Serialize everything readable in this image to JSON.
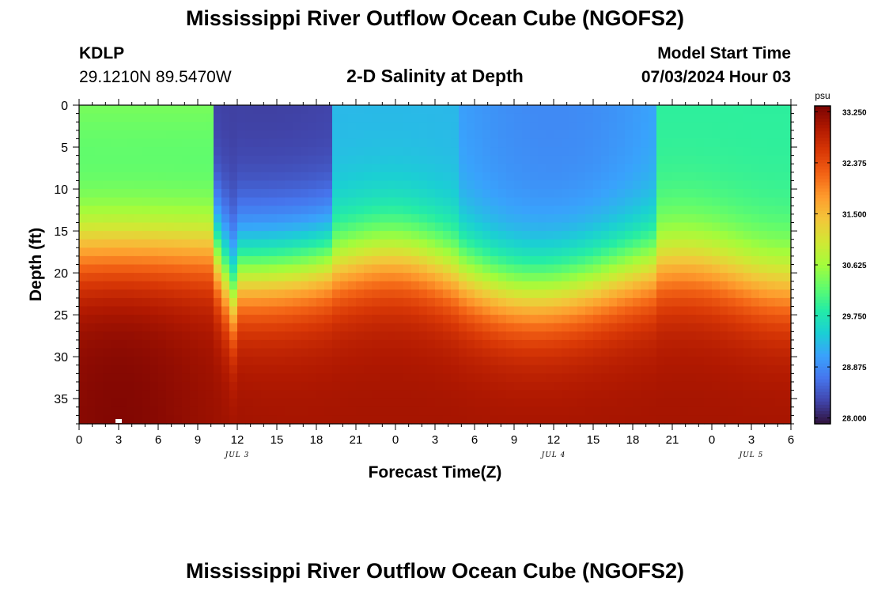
{
  "header": {
    "title": "Mississippi River Outflow Ocean Cube (NGOFS2)",
    "station_id": "KDLP",
    "station_coords": "29.1210N  89.5470W",
    "subtitle": "2-D Salinity at Depth",
    "model_start_label": "Model Start Time",
    "model_start_value": "07/03/2024 Hour 03"
  },
  "footer": {
    "title": "Mississippi River Outflow Ocean Cube (NGOFS2)"
  },
  "colors": {
    "colormap": [
      "#30123b",
      "#4145ab",
      "#4675ed",
      "#39a2fc",
      "#1bcfd4",
      "#24eca6",
      "#61fc6c",
      "#a4fc3b",
      "#d1e834",
      "#f3c63a",
      "#fe9b2d",
      "#f36315",
      "#d93806",
      "#b11901",
      "#7a0402"
    ]
  },
  "chart_data": {
    "type": "heatmap",
    "title": "2-D Salinity at Depth",
    "xlabel": "Forecast Time(Z)",
    "ylabel": "Depth (ft)",
    "x_ticks": [
      "0",
      "3",
      "6",
      "9",
      "12",
      "15",
      "18",
      "21",
      "0",
      "3",
      "6",
      "9",
      "12",
      "15",
      "18",
      "21",
      "0",
      "3",
      "6"
    ],
    "x_hours_from_start": [
      0,
      54
    ],
    "date_labels": [
      {
        "label": "JUL 3",
        "hour": 12
      },
      {
        "label": "JUL 4",
        "hour": 36
      },
      {
        "label": "JUL 5",
        "hour": 51
      }
    ],
    "y_ticks": [
      "0",
      "5",
      "10",
      "15",
      "20",
      "25",
      "30",
      "35"
    ],
    "ylim_ft": [
      0,
      38
    ],
    "colorbar": {
      "unit": "psu",
      "ticks": [
        "33.250",
        "32.375",
        "31.500",
        "30.625",
        "29.750",
        "28.875",
        "28.000"
      ],
      "min": 27.9,
      "max": 33.35
    },
    "grid": false,
    "marker_note": {
      "hour": 3,
      "depth_ft": 38
    }
  }
}
